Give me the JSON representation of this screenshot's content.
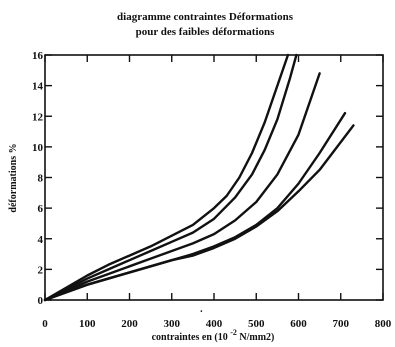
{
  "chart_data": {
    "type": "line",
    "title": "diagramme contraintes Déformations",
    "subtitle": "pour des faibles déformations",
    "xlabel": "contraintes en (10",
    "xlabel_exp": "-2",
    "xlabel_unit": " N/mm2)",
    "ylabel": "déformations %",
    "xlim": [
      0,
      800
    ],
    "ylim": [
      0,
      16
    ],
    "xticks": [
      0,
      100,
      200,
      300,
      400,
      500,
      600,
      700,
      800
    ],
    "yticks": [
      0,
      2,
      4,
      6,
      8,
      10,
      12,
      14,
      16
    ],
    "grid": false,
    "annotation": ".",
    "line_color": "#111111",
    "series": [
      {
        "x": [
          0,
          50,
          100,
          150,
          200,
          250,
          300,
          350,
          400,
          430,
          460,
          490,
          520,
          550,
          575
        ],
        "y": [
          0,
          0.8,
          1.6,
          2.3,
          2.9,
          3.5,
          4.2,
          4.9,
          6.0,
          6.8,
          8.0,
          9.6,
          11.6,
          14.0,
          16.0
        ]
      },
      {
        "x": [
          0,
          50,
          100,
          150,
          200,
          250,
          300,
          350,
          400,
          450,
          490,
          520,
          550,
          580,
          595
        ],
        "y": [
          0,
          0.7,
          1.4,
          2.0,
          2.6,
          3.2,
          3.8,
          4.4,
          5.3,
          6.7,
          8.2,
          9.8,
          11.8,
          14.5,
          16.0
        ]
      },
      {
        "x": [
          0,
          50,
          100,
          150,
          200,
          250,
          300,
          350,
          400,
          450,
          500,
          550,
          600,
          650
        ],
        "y": [
          0,
          0.6,
          1.2,
          1.7,
          2.2,
          2.7,
          3.2,
          3.7,
          4.3,
          5.2,
          6.4,
          8.2,
          10.8,
          14.8
        ]
      },
      {
        "x": [
          0,
          50,
          100,
          150,
          200,
          250,
          300,
          350,
          400,
          450,
          500,
          550,
          600,
          650,
          710
        ],
        "y": [
          0,
          0.5,
          1.0,
          1.4,
          1.8,
          2.2,
          2.6,
          3.0,
          3.5,
          4.1,
          4.9,
          6.0,
          7.6,
          9.6,
          12.2
        ]
      },
      {
        "x": [
          0,
          50,
          100,
          150,
          200,
          250,
          300,
          350,
          400,
          450,
          500,
          550,
          600,
          650,
          730
        ],
        "y": [
          0,
          0.5,
          1.0,
          1.4,
          1.8,
          2.2,
          2.6,
          2.9,
          3.4,
          4.0,
          4.8,
          5.8,
          7.1,
          8.5,
          11.4
        ]
      }
    ]
  }
}
